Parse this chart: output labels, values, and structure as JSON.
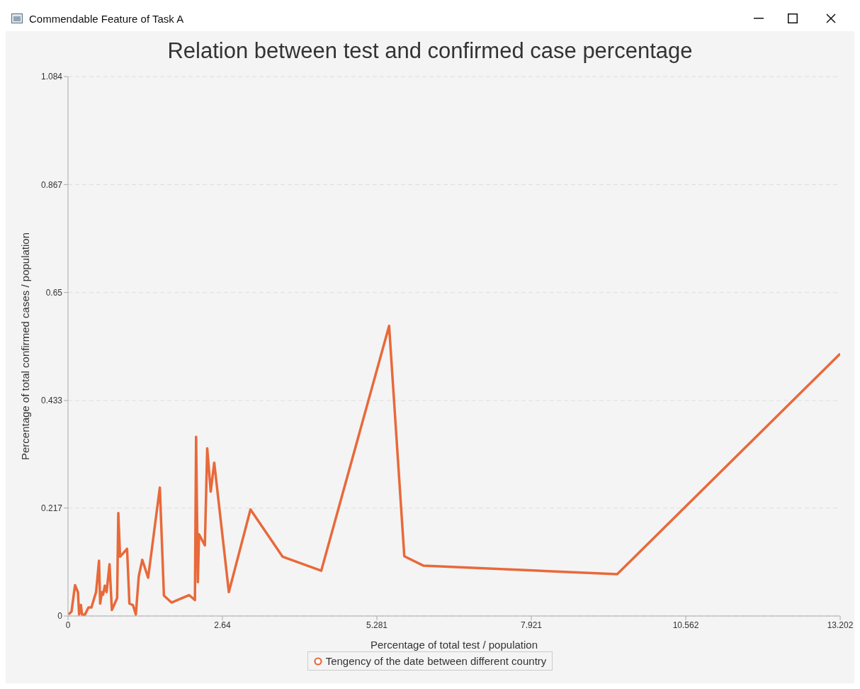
{
  "chart_data": {
    "type": "line",
    "title": "Relation between test and confirmed case percentage",
    "xlabel": "Percentage of total test / population",
    "ylabel": "Percentage of total confirmed cases / population",
    "annotations": [
      "Commendable Feature of Task A"
    ],
    "x": [
      0.01,
      0.06,
      0.12,
      0.17,
      0.19,
      0.22,
      0.24,
      0.29,
      0.35,
      0.4,
      0.48,
      0.53,
      0.55,
      0.58,
      0.6,
      0.63,
      0.66,
      0.71,
      0.75,
      0.84,
      0.86,
      0.89,
      1.01,
      1.05,
      1.11,
      1.16,
      1.21,
      1.27,
      1.37,
      1.57,
      1.64,
      1.77,
      2.07,
      2.17,
      2.19,
      2.22,
      2.24,
      2.34,
      2.38,
      2.44,
      2.5,
      2.75,
      3.12,
      3.67,
      4.33,
      5.49,
      5.75,
      6.08,
      9.39,
      13.202
    ],
    "series": [
      {
        "name": "Tengency of the date between different country",
        "color": "#e8693a",
        "values": [
          0.003,
          0.009,
          0.062,
          0.048,
          0.003,
          0.022,
          0.003,
          0.003,
          0.017,
          0.017,
          0.048,
          0.111,
          0.025,
          0.048,
          0.043,
          0.061,
          0.048,
          0.104,
          0.012,
          0.036,
          0.207,
          0.119,
          0.135,
          0.025,
          0.022,
          0.003,
          0.08,
          0.113,
          0.077,
          0.258,
          0.041,
          0.027,
          0.042,
          0.032,
          0.36,
          0.068,
          0.164,
          0.142,
          0.337,
          0.25,
          0.308,
          0.048,
          0.214,
          0.119,
          0.091,
          0.583,
          0.12,
          0.101,
          0.084,
          0.527
        ]
      }
    ],
    "xlim": [
      0,
      13.202
    ],
    "xticks": [
      0,
      2.64,
      5.281,
      7.921,
      10.562,
      13.202
    ],
    "ylim": [
      0,
      1.084
    ],
    "yticks": [
      0,
      0.217,
      0.433,
      0.65,
      0.867,
      1.084
    ],
    "grid": "y",
    "legend": "bottom",
    "line_style": "solid"
  }
}
